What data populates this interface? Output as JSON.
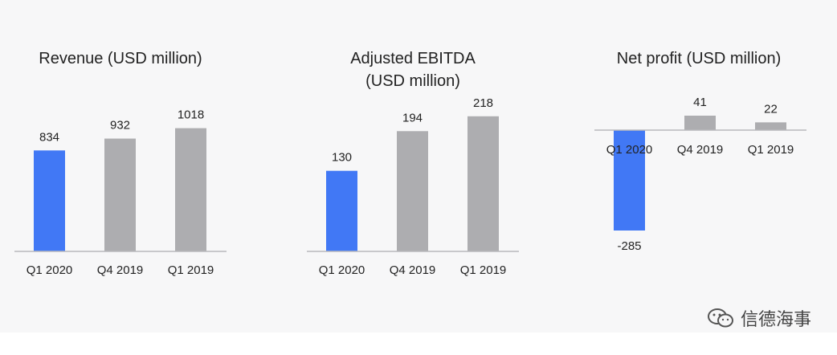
{
  "chart_data": [
    {
      "type": "bar",
      "title_lines": [
        "Revenue (USD million)"
      ],
      "categories": [
        "Q1 2020",
        "Q4 2019",
        "Q1 2019"
      ],
      "values": [
        834,
        932,
        1018
      ],
      "labels": [
        "834",
        "932",
        "1018"
      ],
      "ylim": [
        0,
        1100
      ]
    },
    {
      "type": "bar",
      "title_lines": [
        "Adjusted EBITDA",
        "(USD million)"
      ],
      "categories": [
        "Q1 2020",
        "Q4 2019",
        "Q1 2019"
      ],
      "values": [
        130,
        194,
        218
      ],
      "labels": [
        "130",
        "194",
        "218"
      ],
      "ylim": [
        0,
        225
      ]
    },
    {
      "type": "bar",
      "title_lines": [
        "Net profit (USD million)"
      ],
      "categories": [
        "Q1 2020",
        "Q4 2019",
        "Q1 2019"
      ],
      "values": [
        -285,
        41,
        22
      ],
      "labels": [
        "-285",
        "41",
        "22"
      ],
      "ylim": [
        -300,
        50
      ]
    }
  ],
  "colors": {
    "highlight": "#4178f5",
    "default": "#adadb0",
    "axis": "#b9b9bc",
    "text": "#222222"
  },
  "watermark": {
    "text": "信德海事",
    "icon": "wechat-icon"
  }
}
